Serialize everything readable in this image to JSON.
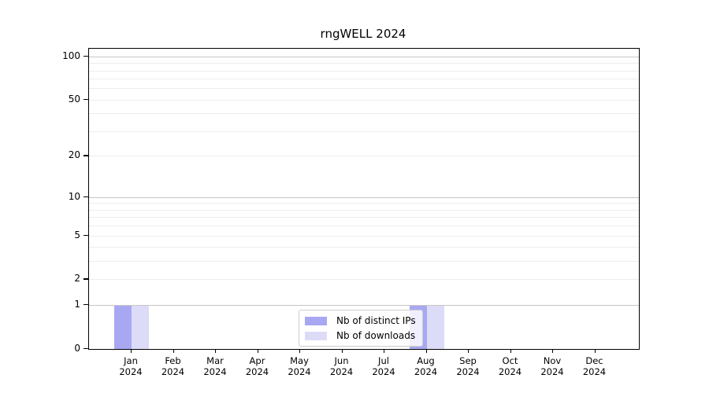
{
  "chart_data": {
    "type": "bar",
    "title": "rngWELL 2024",
    "categories": [
      "Jan",
      "Feb",
      "Mar",
      "Apr",
      "May",
      "Jun",
      "Jul",
      "Aug",
      "Sep",
      "Oct",
      "Nov",
      "Dec"
    ],
    "category_year_label": "2024",
    "series": [
      {
        "name": "Nb of distinct IPs",
        "color": "#a8a8f2",
        "values": [
          1,
          0,
          0,
          0,
          0,
          0,
          0,
          1,
          0,
          0,
          0,
          0
        ]
      },
      {
        "name": "Nb of downloads",
        "color": "#dcdcf8",
        "values": [
          1,
          0,
          0,
          0,
          0,
          0,
          0,
          1,
          0,
          0,
          0,
          0
        ]
      }
    ],
    "yscale": "symlog",
    "ytick_labels": [
      0,
      1,
      2,
      5,
      10,
      20,
      50,
      100
    ],
    "ylim": [
      0,
      113
    ],
    "grid_major_at": [
      1,
      10,
      100
    ],
    "grid_minor_at": [
      2,
      3,
      4,
      5,
      6,
      7,
      8,
      9,
      20,
      30,
      40,
      50,
      60,
      70,
      80,
      90
    ],
    "legend": {
      "position": "inside-bottom-center",
      "entries": [
        "Nb of distinct IPs",
        "Nb of downloads"
      ]
    },
    "colors": {
      "axis": "#000000",
      "major_grid": "#c6c6c6",
      "minor_grid": "#ededed",
      "legend_border": "#cccccc"
    }
  }
}
